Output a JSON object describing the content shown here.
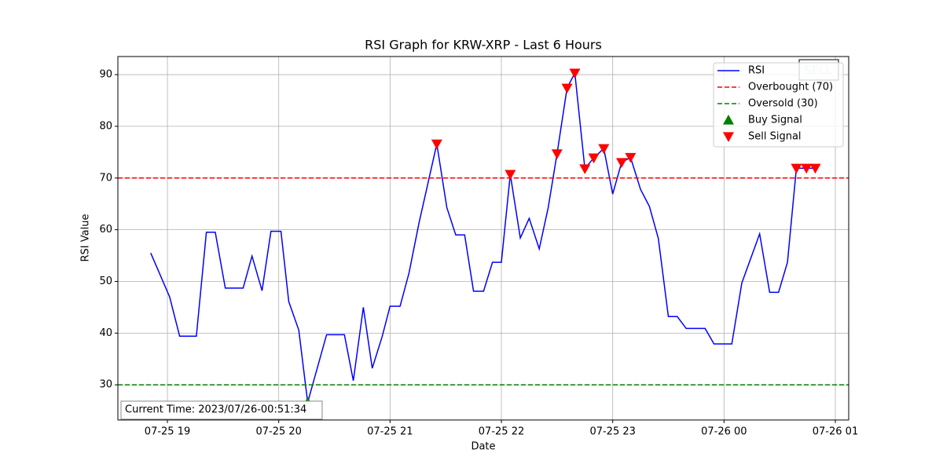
{
  "chart_data": {
    "type": "line",
    "title": "RSI Graph for KRW-XRP - Last 6 Hours",
    "x_label": "Date",
    "y_label": "RSI Value",
    "xlim": [
      18.555,
      25.12
    ],
    "ylim": [
      23.2,
      93.5
    ],
    "xticks": [
      {
        "value": 19,
        "label": "07-25 19"
      },
      {
        "value": 20,
        "label": "07-25 20"
      },
      {
        "value": 21,
        "label": "07-25 21"
      },
      {
        "value": 22,
        "label": "07-25 22"
      },
      {
        "value": 23,
        "label": "07-25 23"
      },
      {
        "value": 24,
        "label": "07-26 00"
      },
      {
        "value": 25,
        "label": "07-26 01"
      }
    ],
    "yticks": [
      30,
      40,
      50,
      60,
      70,
      80,
      90
    ],
    "grid": true,
    "legend": "upper right",
    "series": [
      {
        "name": "RSI",
        "kind": "line",
        "color": "#0000ff",
        "x": [
          18.85,
          19.02,
          19.11,
          19.26,
          19.35,
          19.43,
          19.52,
          19.68,
          19.76,
          19.85,
          19.93,
          20.02,
          20.09,
          20.18,
          20.26,
          20.43,
          20.59,
          20.67,
          20.76,
          20.84,
          20.93,
          21.0,
          21.09,
          21.17,
          21.26,
          21.42,
          21.51,
          21.59,
          21.67,
          21.75,
          21.84,
          21.92,
          22.0,
          22.08,
          22.17,
          22.25,
          22.34,
          22.42,
          22.5,
          22.59,
          22.66,
          22.75,
          22.83,
          22.92,
          23.0,
          23.08,
          23.16,
          23.25,
          23.33,
          23.41,
          23.5,
          23.58,
          23.66,
          23.83,
          23.91,
          24.07,
          24.16,
          24.32,
          24.41,
          24.49,
          24.57,
          24.65,
          24.74,
          24.82
        ],
        "values": [
          55.5,
          47.0,
          39.4,
          39.4,
          59.5,
          59.5,
          48.7,
          48.7,
          54.9,
          48.2,
          59.7,
          59.7,
          46.1,
          40.6,
          26.6,
          39.7,
          39.7,
          30.8,
          45.0,
          33.2,
          39.4,
          45.2,
          45.2,
          51.6,
          61.3,
          76.6,
          64.3,
          59.0,
          59.0,
          48.1,
          48.1,
          53.7,
          53.7,
          70.7,
          58.4,
          62.2,
          56.3,
          64.2,
          74.7,
          87.4,
          90.3,
          71.8,
          73.9,
          75.7,
          66.9,
          73.0,
          74.0,
          67.8,
          64.5,
          58.3,
          43.2,
          43.2,
          40.9,
          40.9,
          37.9,
          37.9,
          49.7,
          59.2,
          47.9,
          47.9,
          53.7,
          71.9,
          71.9,
          71.9
        ]
      },
      {
        "name": "Overbought (70)",
        "kind": "hline",
        "color": "#ff0000",
        "values": [
          70
        ]
      },
      {
        "name": "Oversold (30)",
        "kind": "hline",
        "color": "#008000",
        "values": [
          30
        ]
      },
      {
        "name": "Buy Signal",
        "kind": "up",
        "color": "#008000",
        "x": [
          20.26
        ],
        "values": [
          26.6
        ]
      },
      {
        "name": "Sell Signal",
        "kind": "down",
        "color": "#ff0000",
        "x": [
          21.42,
          22.08,
          22.5,
          22.59,
          22.66,
          22.75,
          22.83,
          22.92,
          23.08,
          23.16,
          24.65,
          24.74,
          24.82
        ],
        "values": [
          76.6,
          70.7,
          74.7,
          87.4,
          90.3,
          71.8,
          73.9,
          75.7,
          73.0,
          74.0,
          71.9,
          71.9,
          71.9
        ]
      }
    ],
    "signal_text": "SELL",
    "time_annotation": "Current Time: 2023/07/26-00:51:34"
  }
}
